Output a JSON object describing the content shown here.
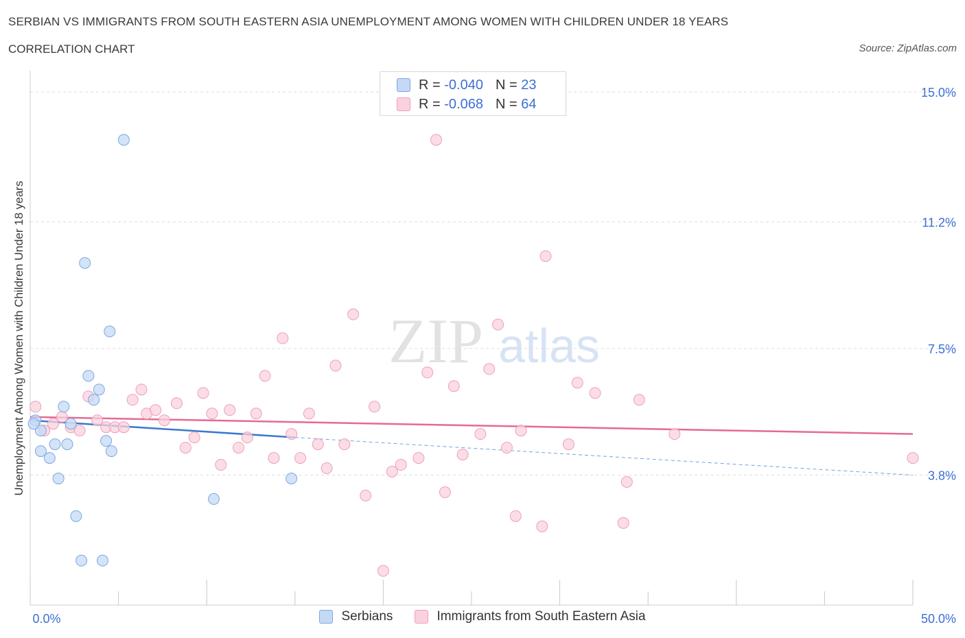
{
  "header": {
    "title": "SERBIAN VS IMMIGRANTS FROM SOUTH EASTERN ASIA UNEMPLOYMENT AMONG WOMEN WITH CHILDREN UNDER 18 YEARS",
    "subtitle": "CORRELATION CHART",
    "source": "Source: ZipAtlas.com"
  },
  "watermark": {
    "zip": "ZIP",
    "atlas": "atlas"
  },
  "stats_legend": {
    "rows": [
      {
        "r_label": "R =",
        "r_value": "-0.040",
        "n_label": "N =",
        "n_value": "23",
        "color": "#a9c7f2"
      },
      {
        "r_label": "R =",
        "r_value": "-0.068",
        "n_label": "N =",
        "n_value": "64",
        "color": "#f5b6c9"
      }
    ]
  },
  "colors": {
    "blue_fill": "#c4d9f5",
    "blue_stroke": "#7fa6e0",
    "blue_line": "#3a78d0",
    "pink_fill": "#f9d2de",
    "pink_stroke": "#ee9fb8",
    "pink_line": "#e46a92",
    "tick_text": "#3b6fd4",
    "grid": "#dcdcdc"
  },
  "chart_data": {
    "type": "scatter",
    "title": "SERBIAN VS IMMIGRANTS FROM SOUTH EASTERN ASIA UNEMPLOYMENT AMONG WOMEN WITH CHILDREN UNDER 18 YEARS",
    "xlabel": "",
    "ylabel": "Unemployment Among Women with Children Under 18 years",
    "xlim": [
      0,
      50
    ],
    "ylim": [
      0,
      15
    ],
    "x_tick_labels": [
      "0.0%",
      "50.0%"
    ],
    "y_ticks": [
      3.8,
      7.5,
      11.2,
      15.0
    ],
    "y_tick_labels": [
      "3.8%",
      "7.5%",
      "11.2%",
      "15.0%"
    ],
    "grid": true,
    "legend": "bottom-center",
    "series": [
      {
        "name": "Serbians",
        "color": "#a9c7f2",
        "trend": {
          "x": [
            0,
            15
          ],
          "y": [
            5.4,
            4.9
          ],
          "dashed_to": [
            50,
            3.8
          ]
        },
        "points": [
          [
            0.3,
            5.4
          ],
          [
            0.6,
            5.1
          ],
          [
            0.6,
            4.5
          ],
          [
            1.1,
            4.3
          ],
          [
            1.4,
            4.7
          ],
          [
            1.6,
            3.7
          ],
          [
            1.9,
            5.8
          ],
          [
            2.1,
            4.7
          ],
          [
            2.3,
            5.3
          ],
          [
            2.6,
            2.6
          ],
          [
            2.9,
            1.3
          ],
          [
            3.1,
            10.0
          ],
          [
            3.3,
            6.7
          ],
          [
            3.6,
            6.0
          ],
          [
            3.9,
            6.3
          ],
          [
            4.1,
            1.3
          ],
          [
            4.3,
            4.8
          ],
          [
            4.5,
            8.0
          ],
          [
            4.6,
            4.5
          ],
          [
            5.3,
            13.6
          ],
          [
            10.4,
            3.1
          ],
          [
            14.8,
            3.7
          ],
          [
            0.2,
            5.3
          ]
        ]
      },
      {
        "name": "Immigrants from South Eastern Asia",
        "color": "#f5b6c9",
        "trend": {
          "x": [
            0,
            50
          ],
          "y": [
            5.5,
            5.0
          ]
        },
        "points": [
          [
            0.3,
            5.8
          ],
          [
            0.8,
            5.1
          ],
          [
            1.3,
            5.3
          ],
          [
            1.8,
            5.5
          ],
          [
            2.3,
            5.2
          ],
          [
            2.8,
            5.1
          ],
          [
            3.3,
            6.1
          ],
          [
            3.8,
            5.4
          ],
          [
            4.3,
            5.2
          ],
          [
            4.8,
            5.2
          ],
          [
            5.3,
            5.2
          ],
          [
            5.8,
            6.0
          ],
          [
            6.3,
            6.3
          ],
          [
            6.6,
            5.6
          ],
          [
            7.1,
            5.7
          ],
          [
            7.6,
            5.4
          ],
          [
            8.3,
            5.9
          ],
          [
            8.8,
            4.6
          ],
          [
            9.3,
            4.9
          ],
          [
            9.8,
            6.2
          ],
          [
            10.3,
            5.6
          ],
          [
            10.8,
            4.1
          ],
          [
            11.3,
            5.7
          ],
          [
            11.8,
            4.6
          ],
          [
            12.3,
            4.9
          ],
          [
            12.8,
            5.6
          ],
          [
            13.3,
            6.7
          ],
          [
            13.8,
            4.3
          ],
          [
            14.3,
            7.8
          ],
          [
            14.8,
            5.0
          ],
          [
            15.3,
            4.3
          ],
          [
            15.8,
            5.6
          ],
          [
            16.3,
            4.7
          ],
          [
            16.8,
            4.0
          ],
          [
            17.3,
            7.0
          ],
          [
            17.8,
            4.7
          ],
          [
            18.3,
            8.5
          ],
          [
            19.0,
            3.2
          ],
          [
            19.5,
            5.8
          ],
          [
            20.0,
            1.0
          ],
          [
            20.5,
            3.9
          ],
          [
            21.0,
            4.1
          ],
          [
            22.0,
            4.3
          ],
          [
            22.5,
            6.8
          ],
          [
            23.0,
            13.6
          ],
          [
            23.5,
            3.3
          ],
          [
            24.0,
            6.4
          ],
          [
            24.5,
            4.4
          ],
          [
            25.5,
            5.0
          ],
          [
            26.0,
            6.9
          ],
          [
            26.5,
            8.2
          ],
          [
            27.0,
            4.6
          ],
          [
            27.5,
            2.6
          ],
          [
            27.8,
            5.1
          ],
          [
            29.0,
            2.3
          ],
          [
            29.2,
            10.2
          ],
          [
            30.5,
            4.7
          ],
          [
            31.0,
            6.5
          ],
          [
            32.0,
            6.2
          ],
          [
            33.8,
            3.6
          ],
          [
            33.6,
            2.4
          ],
          [
            34.5,
            6.0
          ],
          [
            36.5,
            5.0
          ],
          [
            50.0,
            4.3
          ]
        ]
      }
    ]
  }
}
